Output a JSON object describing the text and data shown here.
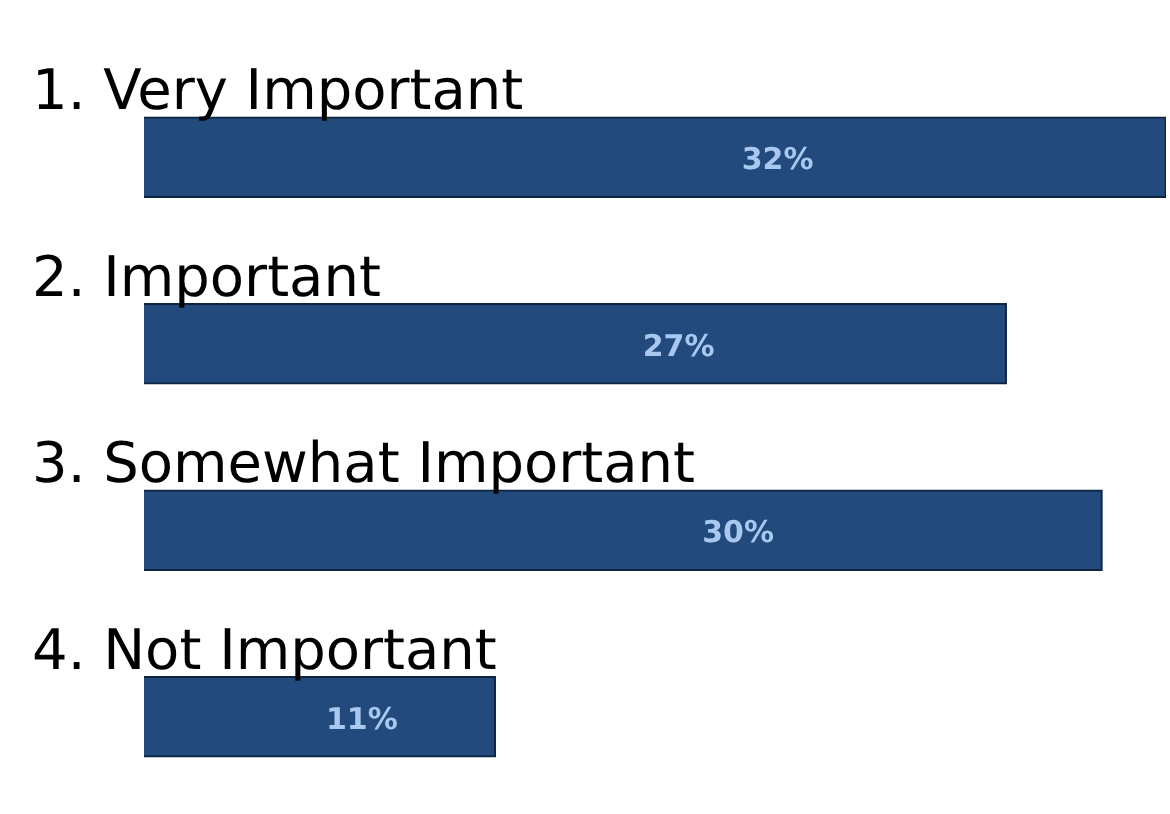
{
  "chart_data": {
    "type": "bar",
    "orientation": "horizontal",
    "categories": [
      "1. Very Important",
      "2. Important",
      "3. Somewhat Important",
      "4. Not Important"
    ],
    "values": [
      32,
      27,
      30,
      11
    ],
    "value_labels": [
      "32%",
      "27%",
      "30%",
      "11%"
    ],
    "color": "#234a7c"
  }
}
